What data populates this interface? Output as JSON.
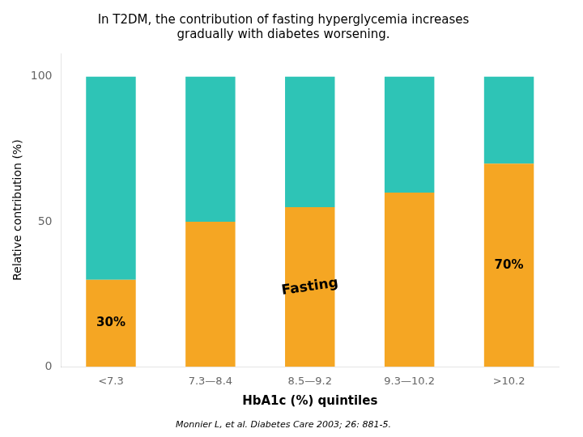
{
  "chart_data": {
    "type": "bar",
    "title": [
      "In T2DM, the contribution of fasting hyperglycemia increases",
      "gradually with diabetes worsening."
    ],
    "source": "Monnier L, et al. Diabetes Care 2003; 26: 881-5.",
    "x_label": "HbA1c (%) quintiles",
    "y_label": "Relative contribution (%)",
    "categories": [
      "<7.3",
      "7.3—8.4",
      "8.5—9.2",
      "9.3—10.2",
      ">10.2"
    ],
    "series": [
      {
        "color": "#F5A623",
        "values": [
          30,
          50,
          55,
          60,
          70
        ]
      },
      {
        "color": "#2EC4B6",
        "values": [
          70,
          50,
          45,
          40,
          30
        ]
      }
    ],
    "stacked": true,
    "ylim": [
      0,
      108
    ],
    "yticks": [
      0,
      50,
      100
    ],
    "grid": false,
    "annotations": [
      {
        "text": "Fasting"
      },
      {
        "text": "30%",
        "category": "<7.3"
      },
      {
        "text": "70%",
        "category": ">10.2"
      }
    ]
  }
}
